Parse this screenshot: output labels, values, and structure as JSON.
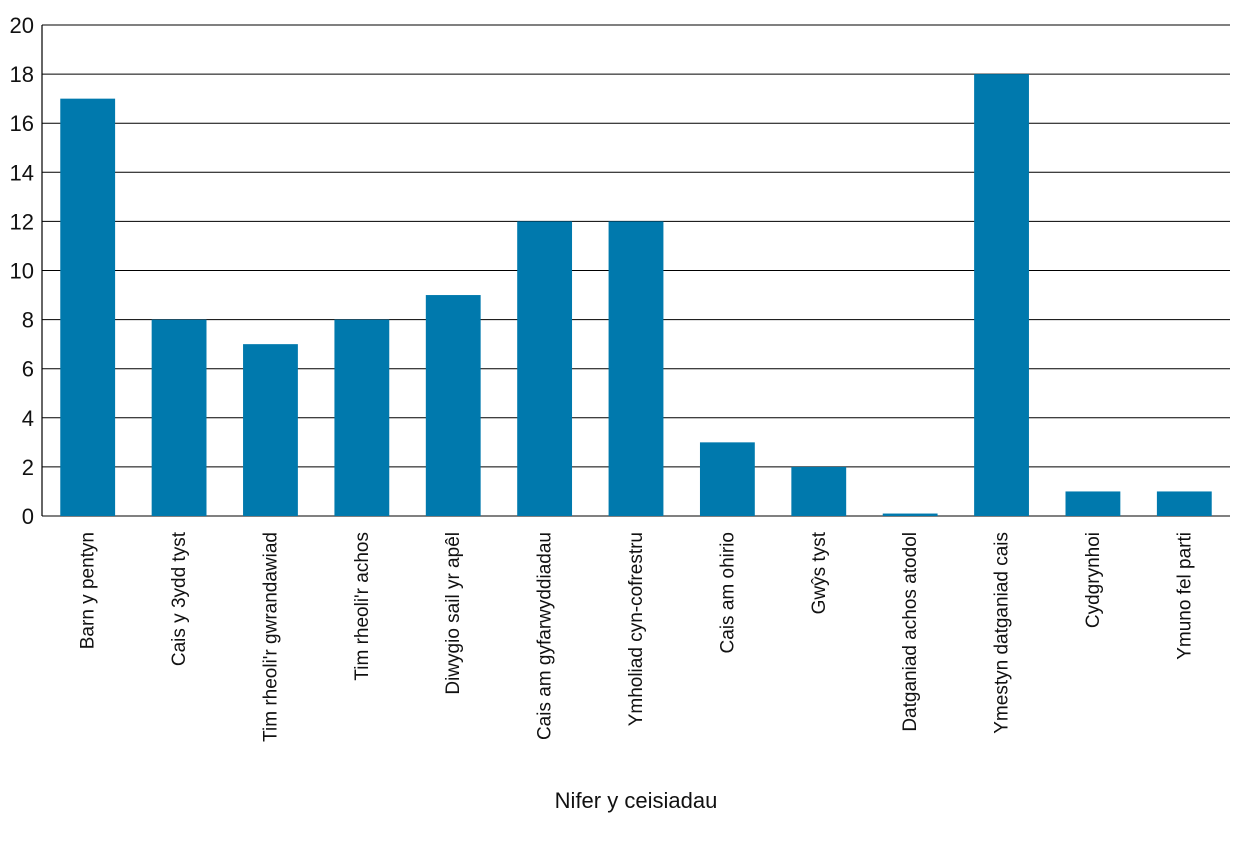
{
  "chart_data": {
    "type": "bar",
    "title": "",
    "xlabel": "Nifer y ceisiadau",
    "ylabel": "",
    "ylim": [
      0,
      20
    ],
    "y_ticks": [
      0,
      2,
      4,
      6,
      8,
      10,
      12,
      14,
      16,
      18,
      20
    ],
    "grid": true,
    "bar_color": "#0079AD",
    "categories": [
      "Barn y pentyn",
      "Cais y 3ydd tyst",
      "Tim rheoli'r gwrandawiad",
      "Tim rheoli'r achos",
      "Diwygio sail yr apêl",
      "Cais am gyfarwyddiadau",
      "Ymholiad cyn-cofrestru",
      "Cais am ohirio",
      "Gwŷs tyst",
      "Datganiad achos atodol",
      "Ymestyn datganiad cais",
      "Cydgrynhoi",
      "Ymuno fel parti"
    ],
    "values": [
      17,
      8,
      7,
      8,
      9,
      12,
      12,
      3,
      2,
      0.1,
      18,
      1,
      1
    ]
  }
}
